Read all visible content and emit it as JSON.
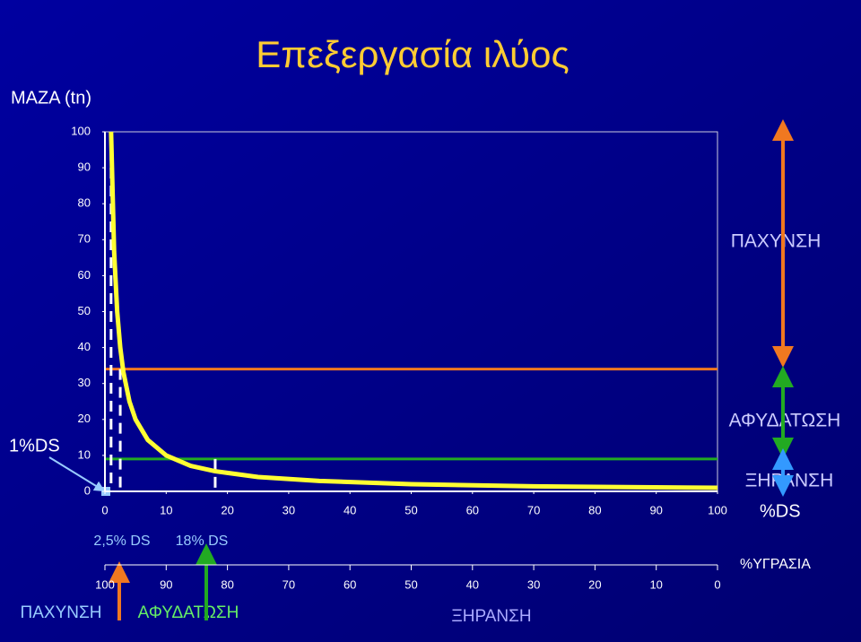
{
  "title": "Επεξεργασία ιλύος",
  "chart_data": {
    "type": "line",
    "y_label": "ΜΑΖΑ (tn)",
    "x_label": "%DS",
    "x": [
      1,
      1.5,
      2,
      2.5,
      3,
      4,
      5,
      7,
      10,
      14,
      18,
      25,
      35,
      50,
      70,
      100
    ],
    "series": [
      {
        "color": "#ffff33",
        "values": [
          100,
          66.7,
          50,
          40,
          33.3,
          25,
          20,
          14.3,
          10,
          7.1,
          5.6,
          4,
          2.9,
          2,
          1.4,
          1
        ]
      }
    ],
    "xlim": [
      0,
      100
    ],
    "ylim": [
      0,
      100
    ],
    "xticks": [
      0,
      10,
      20,
      30,
      40,
      50,
      60,
      70,
      80,
      90,
      100
    ],
    "yticks": [
      0,
      10,
      20,
      30,
      40,
      50,
      60,
      70,
      80,
      90,
      100
    ],
    "x2_label": "%ΥΓΡΑΣΙΑ",
    "x2lim": [
      100,
      0
    ],
    "x2ticks": [
      100,
      90,
      80,
      70,
      60,
      50,
      40,
      30,
      20,
      10,
      0
    ],
    "hlines": [
      {
        "value": 34,
        "color": "#f07820"
      },
      {
        "value": 9,
        "color": "#22aa22"
      }
    ],
    "vlines": [
      {
        "x": 1,
        "y": 100
      },
      {
        "x": 2.5,
        "y": 34
      },
      {
        "x": 18,
        "y": 9
      }
    ],
    "annotations": [
      "1%DS",
      "2,5% DS",
      "18% DS"
    ]
  },
  "stages": {
    "right": [
      "ΠΑΧΥΝΣΗ",
      "ΑΦΥΔΑΤΩΣΗ",
      "ΞΗΡΑΝΣΗ"
    ],
    "bottom": [
      "ΠΑΧΥΝΣΗ",
      "ΑΦΥΔΑΤΩΣΗ",
      "ΞΗΡΑΝΣΗ"
    ]
  }
}
